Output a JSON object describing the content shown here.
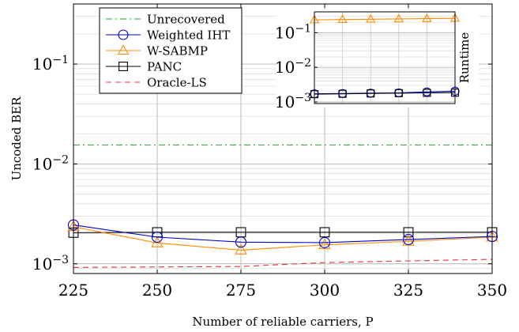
{
  "chart_data": [
    {
      "type": "line",
      "xlabel": "Number of reliable carriers, P",
      "ylabel": "Uncoded BER",
      "yscale": "log",
      "xlim": [
        225,
        350
      ],
      "ylim": [
        0.0008,
        0.4
      ],
      "x_ticks": [
        {
          "value": 225,
          "label": "225"
        },
        {
          "value": 250,
          "label": "250"
        },
        {
          "value": 275,
          "label": "275"
        },
        {
          "value": 300,
          "label": "300"
        },
        {
          "value": 325,
          "label": "325"
        },
        {
          "value": 350,
          "label": "350"
        }
      ],
      "y_ticks": [
        {
          "value": 0.001,
          "base": "10",
          "exp": "−3"
        },
        {
          "value": 0.01,
          "base": "10",
          "exp": "−2"
        },
        {
          "value": 0.1,
          "base": "10",
          "exp": "−1"
        }
      ],
      "grid": true,
      "legend_position": "top-left",
      "x": [
        225,
        250,
        275,
        300,
        325,
        350
      ],
      "series": [
        {
          "name": "Unrecovered",
          "color": "#2ca02c",
          "style": "dashdot",
          "marker": "none",
          "values": [
            0.0155,
            0.0155,
            0.0155,
            0.0155,
            0.0155,
            0.0155
          ]
        },
        {
          "name": "Weighted IHT",
          "color": "#0000cc",
          "style": "solid",
          "marker": "circle",
          "values": [
            0.00245,
            0.00185,
            0.00165,
            0.00163,
            0.00175,
            0.00188
          ]
        },
        {
          "name": "W-SABMP",
          "color": "#ff8c00",
          "style": "solid",
          "marker": "triangle",
          "values": [
            0.00235,
            0.00162,
            0.00137,
            0.00155,
            0.00168,
            0.00185
          ]
        },
        {
          "name": "PANC",
          "color": "#000000",
          "style": "solid",
          "marker": "square",
          "values": [
            0.00205,
            0.00207,
            0.00207,
            0.00207,
            0.00207,
            0.00207
          ]
        },
        {
          "name": "Oracle-LS",
          "color": "#e8313c",
          "style": "dashed",
          "marker": "none",
          "values": [
            0.00092,
            0.00093,
            0.00094,
            0.00103,
            0.00107,
            0.00111
          ]
        }
      ]
    },
    {
      "type": "line",
      "ylabel": "Runtime",
      "yscale": "log",
      "xlim": [
        225,
        350
      ],
      "ylim": [
        0.0009,
        0.4
      ],
      "y_ticks": [
        {
          "value": 0.001,
          "base": "10",
          "exp": "−3"
        },
        {
          "value": 0.01,
          "base": "10",
          "exp": "−2"
        },
        {
          "value": 0.1,
          "base": "10",
          "exp": "−1"
        }
      ],
      "grid": true,
      "x": [
        225,
        250,
        275,
        300,
        325,
        350
      ],
      "series": [
        {
          "name": "W-SABMP",
          "color": "#ff8c00",
          "marker": "triangle",
          "values": [
            0.235,
            0.24,
            0.245,
            0.25,
            0.255,
            0.26
          ]
        },
        {
          "name": "Weighted IHT",
          "color": "#0000cc",
          "marker": "circle",
          "values": [
            0.00172,
            0.00176,
            0.0018,
            0.00183,
            0.00195,
            0.00205
          ]
        },
        {
          "name": "PANC",
          "color": "#000000",
          "marker": "square",
          "values": [
            0.00168,
            0.00172,
            0.00176,
            0.0018,
            0.00183,
            0.00186
          ]
        }
      ]
    }
  ]
}
